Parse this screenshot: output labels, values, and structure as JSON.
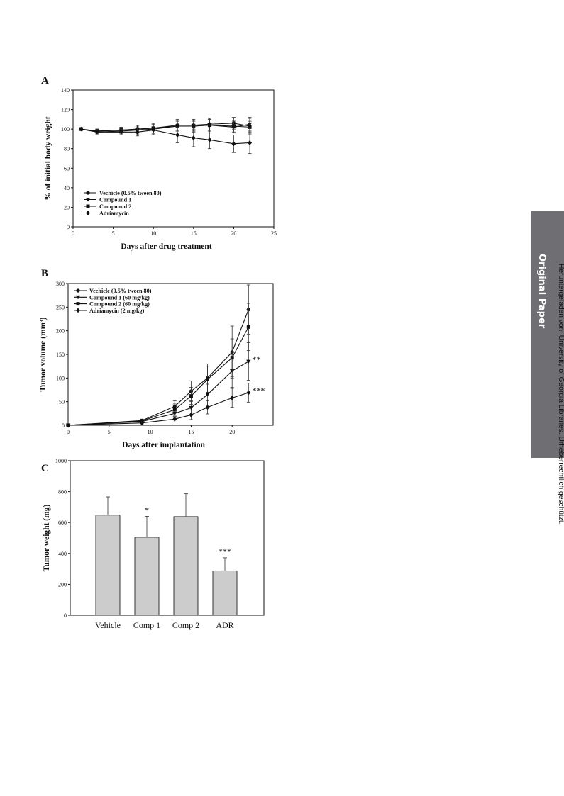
{
  "side_tab": {
    "label": "Original Paper"
  },
  "download_note": "Heruntergeladen von: University of Georgia Libraries. Urheberrechtlich geschützt.",
  "chart_data": [
    {
      "panel": "A",
      "type": "line",
      "xlabel": "Days after drug treatment",
      "ylabel": "% of initial body weight",
      "xlim": [
        0,
        25
      ],
      "ylim": [
        0,
        140
      ],
      "xticks": [
        0,
        5,
        10,
        15,
        20,
        25
      ],
      "yticks": [
        0,
        20,
        40,
        60,
        80,
        100,
        120,
        140
      ],
      "legend_position": "bottom-left",
      "x": [
        1,
        3,
        6,
        8,
        10,
        13,
        15,
        17,
        20,
        22
      ],
      "series": [
        {
          "name": "Vechicle (0.5% tween 80)",
          "marker": "circle",
          "values": [
            100,
            98,
            99,
            100,
            101,
            104,
            104,
            105,
            106,
            103
          ],
          "errors": [
            0,
            2,
            3,
            4,
            5,
            6,
            6,
            6,
            6,
            8
          ]
        },
        {
          "name": "Compound 1",
          "marker": "triangle-down",
          "values": [
            100,
            97,
            98,
            99,
            100,
            103,
            103,
            104,
            102,
            105
          ],
          "errors": [
            0,
            2,
            3,
            4,
            5,
            5,
            6,
            6,
            6,
            7
          ]
        },
        {
          "name": "Compound 2",
          "marker": "square",
          "values": [
            100,
            98,
            99,
            100,
            101,
            103,
            103,
            104,
            103,
            102
          ],
          "errors": [
            0,
            2,
            3,
            4,
            5,
            5,
            5,
            6,
            6,
            6
          ]
        },
        {
          "name": "Adriamycin",
          "marker": "diamond",
          "values": [
            100,
            97,
            97,
            97,
            99,
            94,
            91,
            89,
            85,
            86
          ],
          "errors": [
            0,
            2,
            3,
            4,
            5,
            8,
            9,
            9,
            9,
            11
          ]
        }
      ]
    },
    {
      "panel": "B",
      "type": "line",
      "xlabel": "Days after implantation",
      "ylabel": "Tumor volume (mm³)",
      "xlim": [
        0,
        25
      ],
      "ylim": [
        0,
        300
      ],
      "xticks": [
        0,
        5,
        10,
        15,
        20
      ],
      "yticks": [
        0,
        50,
        100,
        150,
        200,
        250,
        300
      ],
      "legend_position": "top-left",
      "x": [
        0,
        9,
        13,
        15,
        17,
        20,
        22
      ],
      "series": [
        {
          "name": "Vechicle (0.5% tween 80)",
          "marker": "circle",
          "values": [
            0,
            10,
            40,
            72,
            100,
            155,
            245
          ],
          "errors": [
            0,
            3,
            12,
            22,
            30,
            55,
            52
          ]
        },
        {
          "name": "Compound 1 (60 mg/kg)",
          "marker": "triangle-down",
          "values": [
            0,
            8,
            25,
            37,
            65,
            115,
            135
          ],
          "errors": [
            0,
            3,
            10,
            15,
            22,
            35,
            40
          ]
        },
        {
          "name": "Compound 2 (60 mg/kg)",
          "marker": "square",
          "values": [
            0,
            9,
            33,
            62,
            97,
            143,
            208
          ],
          "errors": [
            0,
            3,
            12,
            18,
            28,
            40,
            50
          ]
        },
        {
          "name": "Adriamycin (2 mg/kg)",
          "marker": "diamond",
          "values": [
            0,
            5,
            13,
            22,
            38,
            58,
            69
          ],
          "errors": [
            0,
            2,
            6,
            10,
            14,
            20,
            20
          ]
        }
      ],
      "annotations": [
        {
          "text": "**",
          "series": "Compound 1 (60 mg/kg)"
        },
        {
          "text": "***",
          "series": "Adriamycin (2 mg/kg)"
        }
      ]
    },
    {
      "panel": "C",
      "type": "bar",
      "xlabel": "",
      "ylabel": "Tumor weight (mg)",
      "ylim": [
        0,
        1000
      ],
      "yticks": [
        0,
        200,
        400,
        600,
        800,
        1000
      ],
      "categories": [
        "Vehicle",
        "Comp 1",
        "Comp 2",
        "ADR"
      ],
      "values": [
        648,
        505,
        638,
        287
      ],
      "errors": [
        118,
        135,
        148,
        85
      ],
      "significance": [
        "",
        "*",
        "",
        "***"
      ],
      "bar_color": "#cccccc"
    }
  ]
}
